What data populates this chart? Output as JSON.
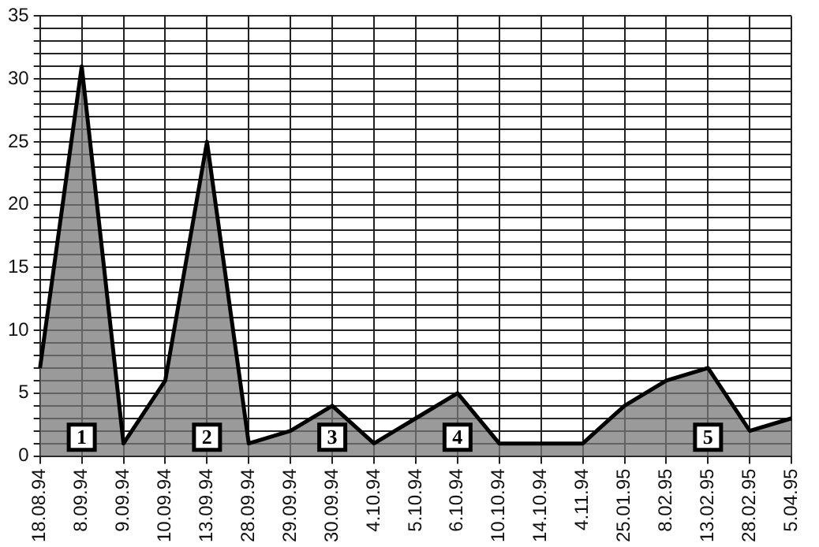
{
  "chart_data": {
    "type": "area",
    "categories": [
      "18.08.94",
      "8.09.94",
      "9.09.94",
      "10.09.94",
      "13.09.94",
      "28.09.94",
      "29.09.94",
      "30.09.94",
      "4.10.94",
      "5.10.94",
      "6.10.94",
      "10.10.94",
      "14.10.94",
      "4.11.94",
      "25.01.95",
      "8.02.95",
      "13.02.95",
      "28.02.95",
      "5.04.95"
    ],
    "series": [
      {
        "color": "#000000",
        "values": [
          7,
          31,
          1,
          6,
          25,
          1,
          2,
          4,
          1,
          3,
          5,
          1,
          1,
          1,
          4,
          6,
          7,
          2,
          3
        ]
      }
    ],
    "ylim": [
      0,
      35
    ],
    "yticks": [
      0,
      {
        "value": 1,
        "label": null
      },
      {
        "value": 2,
        "label": null
      },
      {
        "value": 3,
        "label": null
      },
      {
        "value": 4,
        "label": null
      },
      5,
      {
        "value": 6,
        "label": null
      },
      {
        "value": 7,
        "label": null
      },
      {
        "value": 8,
        "label": null
      },
      {
        "value": 9,
        "label": null
      },
      10,
      {
        "value": 11,
        "label": null
      },
      {
        "value": 12,
        "label": null
      },
      {
        "value": 13,
        "label": null
      },
      {
        "value": 14,
        "label": null
      },
      15,
      {
        "value": 16,
        "label": null
      },
      {
        "value": 17,
        "label": null
      },
      {
        "value": 18,
        "label": null
      },
      {
        "value": 19,
        "label": null
      },
      20,
      {
        "value": 21,
        "label": null
      },
      {
        "value": 22,
        "label": null
      },
      {
        "value": 23,
        "label": null
      },
      {
        "value": 24,
        "label": null
      },
      25,
      {
        "value": 26,
        "label": null
      },
      {
        "value": 27,
        "label": null
      },
      {
        "value": 28,
        "label": null
      },
      {
        "value": 29,
        "label": null
      },
      30,
      {
        "value": 31,
        "label": null
      },
      {
        "value": 32,
        "label": null
      },
      {
        "value": 33,
        "label": null
      },
      {
        "value": 34,
        "label": null
      },
      35
    ],
    "grid": true,
    "marker": "none",
    "annotations": [
      {
        "text": "1",
        "x": "8.09.94",
        "y": 1.5
      },
      {
        "text": "2",
        "x": "13.09.94",
        "y": 1.5
      },
      {
        "text": "3",
        "x": "30.09.94",
        "y": 1.5
      },
      {
        "text": "4",
        "x": "6.10.94",
        "y": 1.5
      },
      {
        "text": "5",
        "x": "13.02.95",
        "y": 1.5
      }
    ]
  }
}
